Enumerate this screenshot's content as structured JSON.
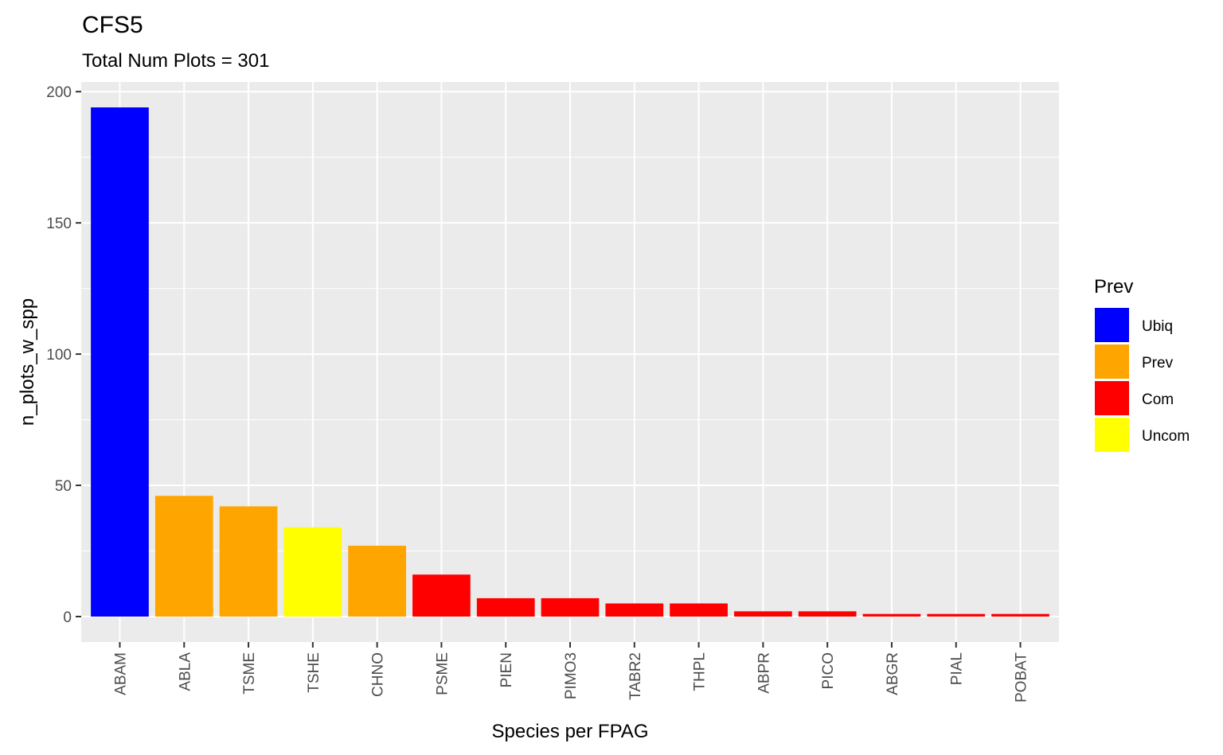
{
  "chart_data": {
    "type": "bar",
    "title": "CFS5",
    "subtitle": "Total Num Plots = 301",
    "xlabel": "Species per FPAG",
    "ylabel": "n_plots_w_spp",
    "categories": [
      "ABAM",
      "ABLA",
      "TSME",
      "TSHE",
      "CHNO",
      "PSME",
      "PIEN",
      "PIMO3",
      "TABR2",
      "THPL",
      "ABPR",
      "PICO",
      "ABGR",
      "PIAL",
      "POBAT"
    ],
    "values": [
      194,
      46,
      42,
      34,
      27,
      16,
      7,
      7,
      5,
      5,
      2,
      2,
      1,
      1,
      1
    ],
    "prev_class": [
      "Ubiq",
      "Prev",
      "Prev",
      "Uncom",
      "Prev",
      "Com",
      "Com",
      "Com",
      "Com",
      "Com",
      "Com",
      "Com",
      "Com",
      "Com",
      "Com"
    ],
    "ylim": [
      -9.7,
      203.7
    ],
    "yticks": [
      0,
      50,
      100,
      150,
      200
    ],
    "grid": true,
    "legend": {
      "title": "Prev",
      "position": "right",
      "entries": [
        {
          "label": "Ubiq",
          "color": "#0000FF"
        },
        {
          "label": "Prev",
          "color": "#FFA500"
        },
        {
          "label": "Com",
          "color": "#FF0000"
        },
        {
          "label": "Uncom",
          "color": "#FFFF00"
        }
      ]
    },
    "colors": {
      "panel": "#EBEBEB",
      "grid": "#FFFFFF",
      "tick_text": "#4D4D4D",
      "tick_mark": "#333333"
    }
  }
}
